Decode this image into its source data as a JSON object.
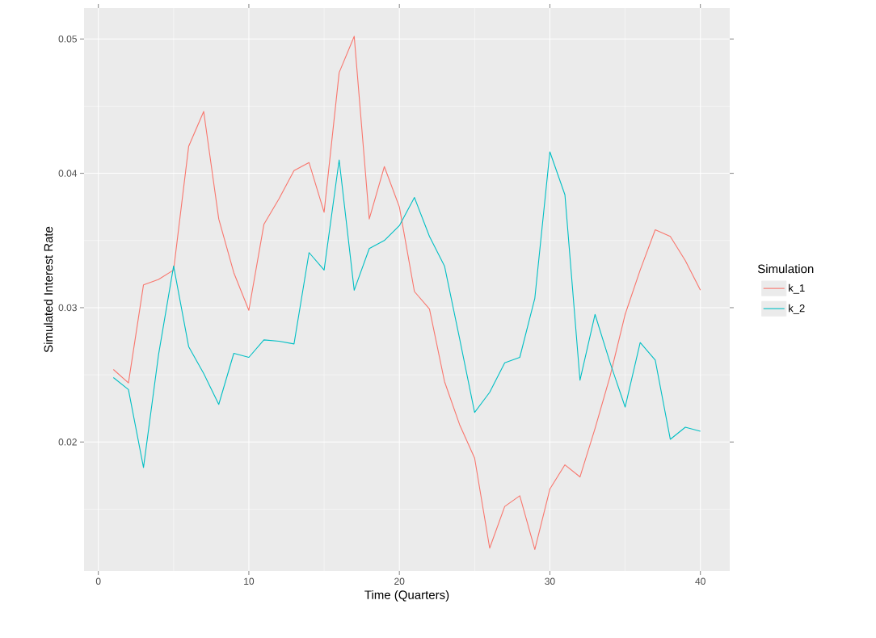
{
  "chart_data": {
    "type": "line",
    "xlabel": "Time (Quarters)",
    "ylabel": "Simulated Interest Rate",
    "legend_title": "Simulation",
    "x": [
      1,
      2,
      3,
      4,
      5,
      6,
      7,
      8,
      9,
      10,
      11,
      12,
      13,
      14,
      15,
      16,
      17,
      18,
      19,
      20,
      21,
      22,
      23,
      24,
      25,
      26,
      27,
      28,
      29,
      30,
      31,
      32,
      33,
      34,
      35,
      36,
      37,
      38,
      39,
      40
    ],
    "series": [
      {
        "name": "k_1",
        "color": "#f8766d",
        "values": [
          0.0254,
          0.0244,
          0.0317,
          0.0321,
          0.0328,
          0.042,
          0.0446,
          0.0366,
          0.0326,
          0.0298,
          0.0362,
          0.0381,
          0.0402,
          0.0408,
          0.0371,
          0.0475,
          0.0502,
          0.0366,
          0.0405,
          0.0375,
          0.0312,
          0.0299,
          0.0245,
          0.0213,
          0.0188,
          0.0121,
          0.0152,
          0.016,
          0.012,
          0.0165,
          0.0183,
          0.0174,
          0.021,
          0.0249,
          0.0295,
          0.0328,
          0.0358,
          0.0353,
          0.0335,
          0.0313
        ]
      },
      {
        "name": "k_2",
        "color": "#00bfc4",
        "values": [
          0.0248,
          0.0239,
          0.0181,
          0.0265,
          0.0331,
          0.0271,
          0.0251,
          0.0228,
          0.0266,
          0.0263,
          0.0276,
          0.0275,
          0.0273,
          0.0341,
          0.0328,
          0.041,
          0.0313,
          0.0344,
          0.035,
          0.0361,
          0.0382,
          0.0353,
          0.0331,
          0.0277,
          0.0222,
          0.0237,
          0.0259,
          0.0263,
          0.0307,
          0.0416,
          0.0384,
          0.0246,
          0.0295,
          0.0259,
          0.0226,
          0.0274,
          0.0261,
          0.0202,
          0.0211,
          0.0208
        ]
      }
    ],
    "xlim": [
      -0.95,
      41.95
    ],
    "ylim": [
      0.0104,
      0.0523
    ],
    "xticks": [
      0,
      10,
      20,
      30,
      40
    ],
    "yticks": [
      0.02,
      0.03,
      0.04,
      0.05
    ],
    "grid": true,
    "legend": "right",
    "marker": "none",
    "line_style": "solid"
  }
}
